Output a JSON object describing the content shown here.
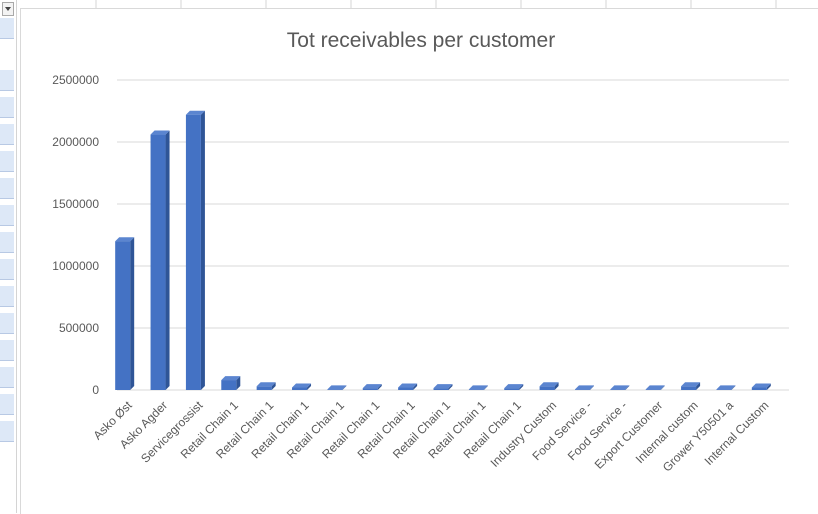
{
  "chart_data": {
    "type": "bar",
    "title": "Tot receivables per customer",
    "xlabel": "",
    "ylabel": "",
    "ylim": [
      0,
      2500000
    ],
    "yticks": [
      "0",
      "500000",
      "1000000",
      "1500000",
      "2000000",
      "2500000"
    ],
    "grid": true,
    "legend": "none",
    "bar_color": "#4472c4",
    "categories": [
      "Asko Øst",
      "Asko Agder",
      "Servicegrossist",
      "Retail Chain 1",
      "Retail Chain 1",
      "Retail Chain 1",
      "Retail Chain 1",
      "Retail Chain 1",
      "Retail Chain 1",
      "Retail Chain 1",
      "Retail Chain 1",
      "Retail Chain 1",
      "Industry Custom",
      "Food Service -",
      "Food Service -",
      "Export Customer",
      "Internal custom",
      "Grower Y50501 a",
      "Internal Custom"
    ],
    "values": [
      1200000,
      2060000,
      2220000,
      80000,
      30000,
      20000,
      5000,
      15000,
      20000,
      15000,
      5000,
      15000,
      30000,
      5000,
      5000,
      5000,
      30000,
      5000,
      20000
    ]
  }
}
